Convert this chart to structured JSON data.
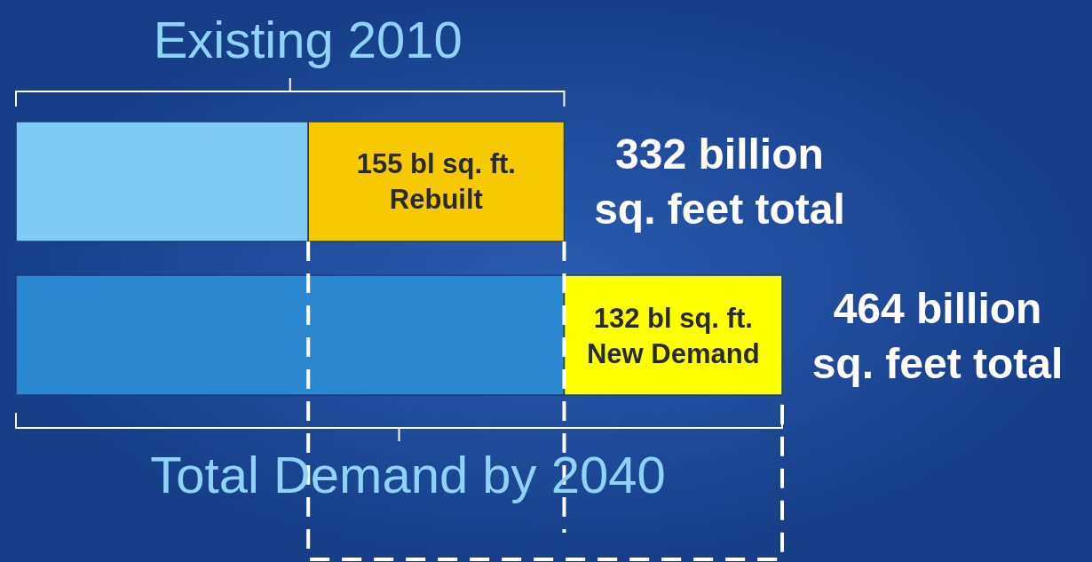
{
  "chart_data": {
    "type": "bar",
    "orientation": "horizontal",
    "stacked": true,
    "categories": [
      null,
      null
    ],
    "series": [
      {
        "values": [
          177,
          332
        ],
        "colors": [
          "#7fcbf5",
          "#2b88d0"
        ]
      },
      {
        "values": [
          155,
          132
        ],
        "colors": [
          "#f7c900",
          "#ffff00"
        ],
        "value_labels": [
          "155 bl sq. ft.\nRebuilt",
          "132 bl sq. ft.\nNew Demand"
        ]
      }
    ],
    "totals": [
      "332 billion\nsq. feet total",
      "464 billion\nsq. feet total"
    ],
    "ref_lines": [
      {
        "axis": "x",
        "value": 332,
        "color": "#ffffff",
        "line_style": "dashed"
      }
    ],
    "annotations": [
      "Existing 2010",
      "Total Demand by 2040"
    ]
  }
}
